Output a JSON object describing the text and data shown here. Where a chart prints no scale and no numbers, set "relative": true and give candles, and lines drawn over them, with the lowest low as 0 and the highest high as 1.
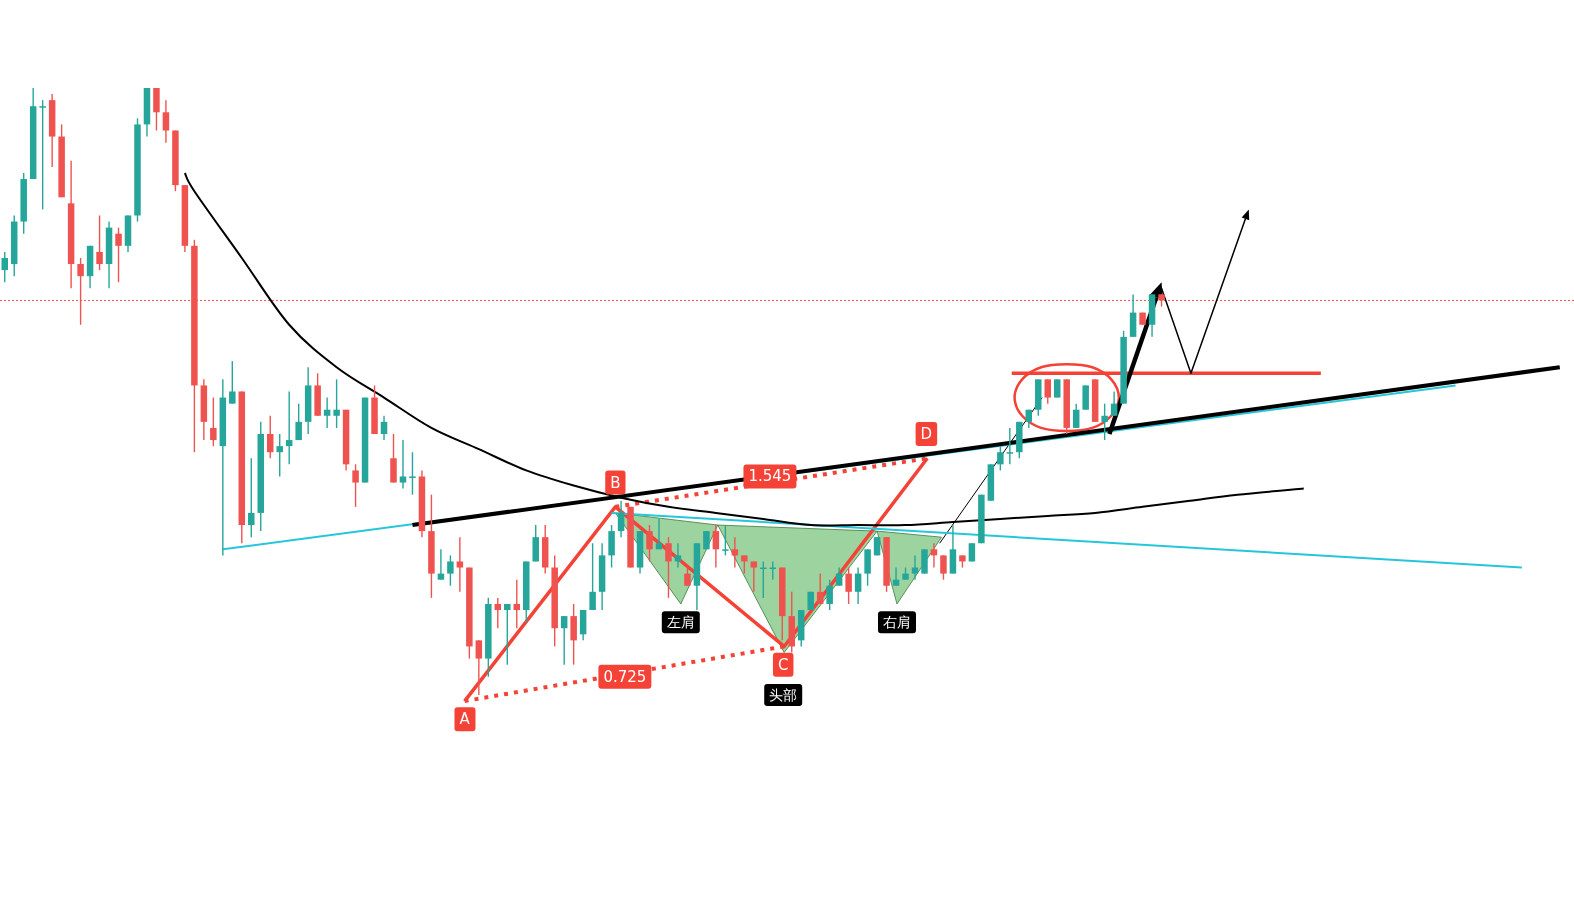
{
  "chart_data": {
    "type": "candlestick",
    "relative": true,
    "categories": [
      null,
      null,
      null,
      null,
      null,
      null,
      null,
      null,
      null,
      null,
      null,
      null,
      null,
      null,
      null,
      null,
      null,
      null,
      null,
      null,
      null,
      null,
      null,
      null,
      null,
      null,
      null,
      null,
      null,
      null,
      null,
      null,
      null,
      null,
      null,
      null,
      null,
      null,
      null,
      null,
      null,
      null,
      null,
      null,
      null,
      null,
      null,
      null,
      null,
      null,
      null,
      null,
      null,
      null,
      null,
      null,
      null,
      null,
      null,
      null,
      null,
      null,
      null,
      null,
      null,
      null,
      null,
      null,
      null,
      null,
      null,
      null,
      null,
      null,
      null,
      null,
      null,
      null,
      null,
      null,
      null,
      null,
      null,
      null,
      null,
      null,
      null,
      null,
      null,
      null,
      null,
      null,
      null,
      null,
      null,
      null,
      null,
      null,
      null,
      null,
      null,
      null,
      null,
      null,
      null,
      null,
      null,
      null,
      null,
      null,
      null,
      null,
      null,
      null,
      null,
      null,
      null,
      null,
      null,
      null,
      null,
      null,
      null,
      null,
      null,
      null,
      null,
      null,
      null,
      null,
      null,
      null,
      null,
      null,
      null,
      null,
      null,
      null,
      null,
      null,
      null,
      null,
      null,
      null,
      null,
      null,
      null,
      null,
      null,
      null,
      null,
      null,
      null,
      null,
      null,
      null,
      null,
      null,
      null,
      null,
      null,
      null,
      null,
      null,
      null
    ],
    "series": [
      {
        "type": "line",
        "color": "#26c6da",
        "values": [
          null,
          null,
          null,
          null,
          null,
          null,
          null,
          null,
          null,
          null,
          null,
          null,
          null,
          null,
          null,
          null,
          null,
          null,
          null,
          null,
          null,
          null,
          null,
          0.24,
          null,
          null,
          null,
          null,
          null,
          null,
          null,
          null,
          null,
          null,
          null,
          null,
          null,
          null,
          null,
          null,
          null,
          null,
          null,
          null,
          null,
          null,
          null,
          null,
          null,
          null,
          null,
          null,
          null,
          null,
          null,
          null,
          null,
          null,
          null,
          null,
          null,
          null,
          null,
          null,
          null,
          null,
          null,
          null,
          null,
          null,
          null,
          null,
          null,
          null,
          null,
          null,
          null,
          null,
          null,
          null,
          null,
          null,
          null,
          null,
          null,
          null,
          null,
          null,
          null,
          null,
          null,
          null,
          null,
          null,
          null,
          null,
          null,
          null,
          null,
          null,
          null,
          null,
          null,
          null,
          null,
          null,
          null,
          null,
          null,
          null,
          null,
          null,
          null,
          null,
          null,
          null,
          null,
          null,
          null,
          null,
          null,
          null,
          null,
          null,
          null,
          null,
          null,
          null,
          null,
          null,
          null,
          null,
          null,
          null,
          null,
          null,
          null,
          null,
          null,
          null,
          null,
          null,
          null,
          null,
          null,
          null,
          null,
          null,
          null,
          null,
          null,
          null,
          null,
          0.51,
          null,
          null,
          null,
          null,
          null,
          null,
          null,
          null,
          null,
          null,
          null
        ]
      },
      {
        "type": "line",
        "color": "#000000",
        "values": [
          null,
          null,
          null,
          null,
          null,
          null,
          null,
          null,
          null,
          null,
          null,
          null,
          null,
          null,
          null,
          null,
          null,
          null,
          null,
          null,
          null,
          null,
          null,
          null,
          null,
          null,
          null,
          null,
          null,
          null,
          null,
          null,
          null,
          null,
          null,
          null,
          null,
          null,
          null,
          null,
          null,
          null,
          null,
          0.28,
          null,
          null,
          null,
          null,
          null,
          null,
          null,
          null,
          null,
          null,
          null,
          null,
          null,
          null,
          null,
          null,
          null,
          null,
          null,
          null,
          null,
          null,
          null,
          null,
          null,
          null,
          null,
          null,
          null,
          null,
          null,
          null,
          null,
          null,
          null,
          null,
          null,
          null,
          null,
          null,
          null,
          null,
          null,
          null,
          null,
          null,
          null,
          null,
          null,
          null,
          null,
          null,
          null,
          null,
          null,
          null,
          null,
          null,
          null,
          null,
          null,
          null,
          null,
          null,
          null,
          null,
          null,
          null,
          null,
          null,
          null,
          null,
          null,
          null,
          null,
          null,
          null,
          null,
          null,
          null,
          null,
          null,
          null,
          null,
          null,
          null,
          null,
          null,
          null,
          null,
          null,
          null,
          null,
          null,
          null,
          null,
          null,
          null,
          null,
          null,
          null,
          null,
          null,
          null,
          null,
          null,
          null,
          null,
          null,
          null,
          null,
          null,
          null,
          null,
          null,
          null,
          null,
          null,
          null,
          null,
          0.54
        ]
      },
      {
        "type": "line",
        "color": "#26c6da",
        "values": [
          null,
          null,
          null,
          null,
          null,
          null,
          null,
          null,
          null,
          null,
          null,
          null,
          null,
          null,
          null,
          null,
          null,
          null,
          null,
          null,
          null,
          null,
          null,
          null,
          null,
          null,
          null,
          null,
          null,
          null,
          null,
          null,
          null,
          null,
          null,
          null,
          null,
          null,
          null,
          null,
          null,
          null,
          null,
          null,
          null,
          null,
          null,
          null,
          null,
          null,
          null,
          null,
          null,
          null,
          null,
          null,
          null,
          null,
          null,
          null,
          null,
          null,
          null,
          null,
          0.3,
          null,
          null,
          null,
          null,
          null,
          null,
          null,
          null,
          null,
          null,
          null,
          null,
          null,
          null,
          null,
          null,
          null,
          null,
          null,
          null,
          null,
          null,
          null,
          null,
          null,
          null,
          null,
          null,
          null,
          null,
          null,
          null,
          null,
          null,
          null,
          null,
          null,
          null,
          null,
          null,
          null,
          null,
          null,
          null,
          null,
          null,
          null,
          null,
          null,
          null,
          null,
          null,
          null,
          null,
          null,
          null,
          null,
          null,
          null,
          null,
          null,
          null,
          null,
          null,
          null,
          null,
          null,
          null,
          null,
          null,
          null,
          null,
          null,
          null,
          null,
          null,
          null,
          null,
          null,
          null,
          null,
          null,
          null,
          null,
          null,
          null,
          null,
          null,
          null,
          null,
          null,
          null,
          null,
          null,
          null,
          0.21,
          null,
          null,
          null,
          null
        ]
      },
      {
        "type": "line",
        "color": "#000000",
        "values": [
          null,
          null,
          null,
          null,
          null,
          null,
          null,
          null,
          null,
          null,
          null,
          null,
          null,
          null,
          null,
          null,
          null,
          null,
          null,
          0.86,
          0.83,
          null,
          null,
          null,
          null,
          0.72,
          null,
          null,
          null,
          null,
          0.61,
          null,
          null,
          null,
          null,
          0.54,
          null,
          null,
          null,
          null,
          0.49,
          null,
          null,
          null,
          null,
          0.44,
          null,
          null,
          null,
          null,
          0.405,
          null,
          null,
          null,
          null,
          0.37,
          null,
          null,
          null,
          null,
          0.345,
          null,
          null,
          null,
          null,
          0.325,
          null,
          null,
          null,
          null,
          0.31,
          null,
          null,
          null,
          null,
          0.3,
          null,
          null,
          null,
          null,
          0.29,
          null,
          null,
          null,
          null,
          0.28,
          null,
          null,
          null,
          null,
          0.28,
          null,
          null,
          null,
          null,
          0.28,
          null,
          null,
          null,
          null,
          0.285,
          null,
          null,
          null,
          null,
          0.29,
          null,
          null,
          null,
          null,
          0.295,
          null,
          null,
          null,
          null,
          0.3,
          null,
          null,
          null,
          null,
          0.31,
          null,
          null,
          null,
          null,
          0.32,
          null,
          null,
          null,
          null,
          0.33,
          null,
          null,
          null,
          null,
          null,
          null,
          0.34,
          null,
          null,
          null,
          null,
          null,
          null,
          null,
          null,
          null,
          null,
          null,
          null,
          null,
          null,
          null,
          null,
          null,
          null,
          null,
          null,
          null,
          null,
          null,
          null,
          null,
          null,
          null
        ]
      }
    ],
    "ohlc": [
      [
        0.7,
        0.73,
        0.68,
        0.72
      ],
      [
        0.71,
        0.79,
        0.69,
        0.78
      ],
      [
        0.78,
        0.86,
        0.76,
        0.85
      ],
      [
        0.85,
        1.0,
        0.85,
        0.97
      ],
      [
        0.97,
        0.98,
        0.8,
        0.97
      ],
      [
        0.98,
        0.99,
        0.87,
        0.92
      ],
      [
        0.92,
        0.94,
        0.82,
        0.82
      ],
      [
        0.81,
        0.88,
        0.67,
        0.71
      ],
      [
        0.71,
        0.72,
        0.61,
        0.69
      ],
      [
        0.69,
        0.74,
        0.67,
        0.74
      ],
      [
        0.73,
        0.79,
        0.7,
        0.71
      ],
      [
        0.71,
        0.78,
        0.67,
        0.77
      ],
      [
        0.76,
        0.77,
        0.68,
        0.74
      ],
      [
        0.74,
        0.79,
        0.73,
        0.79
      ],
      [
        0.79,
        0.95,
        0.78,
        0.94
      ],
      [
        0.94,
        1.0,
        0.92,
        1.0
      ],
      [
        1.0,
        1.0,
        0.93,
        0.96
      ],
      [
        0.96,
        0.98,
        0.91,
        0.93
      ],
      [
        0.93,
        0.93,
        0.83,
        0.84
      ],
      [
        0.84,
        0.84,
        0.73,
        0.74
      ],
      [
        0.74,
        0.75,
        0.4,
        0.51
      ],
      [
        0.51,
        0.52,
        0.42,
        0.45
      ],
      [
        0.44,
        0.49,
        0.41,
        0.42
      ],
      [
        0.41,
        0.52,
        0.23,
        0.49
      ],
      [
        0.48,
        0.55,
        0.48,
        0.5
      ],
      [
        0.5,
        0.5,
        0.25,
        0.28
      ],
      [
        0.28,
        0.39,
        0.26,
        0.3
      ],
      [
        0.3,
        0.45,
        0.27,
        0.43
      ],
      [
        0.43,
        0.46,
        0.39,
        0.4
      ],
      [
        0.4,
        0.43,
        0.36,
        0.41
      ],
      [
        0.41,
        0.5,
        0.38,
        0.42
      ],
      [
        0.42,
        0.48,
        0.42,
        0.45
      ],
      [
        0.45,
        0.54,
        0.43,
        0.51
      ],
      [
        0.51,
        0.53,
        0.46,
        0.46
      ],
      [
        0.46,
        0.49,
        0.44,
        0.47
      ],
      [
        0.46,
        0.52,
        0.44,
        0.47
      ],
      [
        0.47,
        0.47,
        0.37,
        0.38
      ],
      [
        0.37,
        0.38,
        0.31,
        0.35
      ],
      [
        0.35,
        0.49,
        0.35,
        0.49
      ],
      [
        0.49,
        0.51,
        0.43,
        0.43
      ],
      [
        0.43,
        0.46,
        0.42,
        0.45
      ],
      [
        0.39,
        0.43,
        0.35,
        0.35
      ],
      [
        0.35,
        0.42,
        0.34,
        0.36
      ],
      [
        0.36,
        0.4,
        0.33,
        0.36
      ],
      [
        0.36,
        0.37,
        0.26,
        0.27
      ],
      [
        0.27,
        0.33,
        0.16,
        0.2
      ],
      [
        0.19,
        0.24,
        0.19,
        0.2
      ],
      [
        0.2,
        0.23,
        0.18,
        0.22
      ],
      [
        0.22,
        0.26,
        0.17,
        0.21
      ],
      [
        0.21,
        0.21,
        0.06,
        0.08
      ],
      [
        0.09,
        0.09,
        0.0,
        0.06
      ],
      [
        0.06,
        0.16,
        0.03,
        0.15
      ],
      [
        0.15,
        0.16,
        0.11,
        0.14
      ],
      [
        0.14,
        0.15,
        0.05,
        0.15
      ],
      [
        0.15,
        0.19,
        0.11,
        0.14
      ],
      [
        0.14,
        0.22,
        0.12,
        0.22
      ],
      [
        0.22,
        0.28,
        0.22,
        0.26
      ],
      [
        0.26,
        0.28,
        0.2,
        0.21
      ],
      [
        0.21,
        0.23,
        0.08,
        0.11
      ],
      [
        0.11,
        0.13,
        0.05,
        0.13
      ],
      [
        0.13,
        0.15,
        0.05,
        0.09
      ],
      [
        0.1,
        0.14,
        0.09,
        0.14
      ],
      [
        0.14,
        0.25,
        0.14,
        0.17
      ],
      [
        0.17,
        0.25,
        0.14,
        0.23
      ],
      [
        0.23,
        0.28,
        0.21,
        0.27
      ],
      [
        0.27,
        0.32,
        0.26,
        0.3
      ],
      [
        0.31,
        0.31,
        0.21,
        0.21
      ],
      [
        0.21,
        0.27,
        0.2,
        0.27
      ],
      [
        0.27,
        0.28,
        0.22,
        0.24
      ],
      [
        0.24,
        0.29,
        0.24,
        0.25
      ],
      [
        0.25,
        0.26,
        0.16,
        0.22
      ],
      [
        0.22,
        0.25,
        0.21,
        0.23
      ],
      [
        0.2,
        0.21,
        0.18,
        0.18
      ],
      [
        0.18,
        0.25,
        0.14,
        0.25
      ],
      [
        0.24,
        0.27,
        0.24,
        0.27
      ],
      [
        0.27,
        0.28,
        0.21,
        0.24
      ],
      [
        0.24,
        0.28,
        0.23,
        0.24
      ],
      [
        0.24,
        0.26,
        0.21,
        0.23
      ],
      [
        0.23,
        0.23,
        0.2,
        0.22
      ],
      [
        0.22,
        0.22,
        0.17,
        0.21
      ],
      [
        0.21,
        0.22,
        0.16,
        0.21
      ],
      [
        0.21,
        0.22,
        0.19,
        0.21
      ],
      [
        0.21,
        0.21,
        0.09,
        0.13
      ],
      [
        0.13,
        0.17,
        0.07,
        0.08
      ],
      [
        0.09,
        0.14,
        0.08,
        0.14
      ],
      [
        0.14,
        0.17,
        0.14,
        0.17
      ],
      [
        0.17,
        0.2,
        0.15,
        0.15
      ],
      [
        0.15,
        0.19,
        0.14,
        0.18
      ],
      [
        0.18,
        0.21,
        0.18,
        0.2
      ],
      [
        0.2,
        0.21,
        0.15,
        0.17
      ],
      [
        0.17,
        0.21,
        0.15,
        0.2
      ],
      [
        0.2,
        0.24,
        0.18,
        0.24
      ],
      [
        0.23,
        0.26,
        0.23,
        0.26
      ],
      [
        0.26,
        0.26,
        0.17,
        0.18
      ],
      [
        0.18,
        0.21,
        0.18,
        0.19
      ],
      [
        0.19,
        0.21,
        0.19,
        0.2
      ],
      [
        0.2,
        0.23,
        0.19,
        0.21
      ],
      [
        0.2,
        0.24,
        0.2,
        0.24
      ],
      [
        0.24,
        0.25,
        0.21,
        0.23
      ],
      [
        0.23,
        0.23,
        0.19,
        0.2
      ],
      [
        0.2,
        0.28,
        0.2,
        0.24
      ],
      [
        0.23,
        0.23,
        0.21,
        0.22
      ],
      [
        0.22,
        0.25,
        0.22,
        0.25
      ],
      [
        0.25,
        0.33,
        0.25,
        0.33
      ],
      [
        0.32,
        0.38,
        0.32,
        0.38
      ],
      [
        0.38,
        0.41,
        0.37,
        0.4
      ],
      [
        0.4,
        0.44,
        0.38,
        0.4
      ],
      [
        0.4,
        0.45,
        0.39,
        0.45
      ],
      [
        0.45,
        0.47,
        0.44,
        0.47
      ],
      [
        0.47,
        0.52,
        0.46,
        0.52
      ],
      [
        0.52,
        0.52,
        0.48,
        0.49
      ],
      [
        0.49,
        0.52,
        0.49,
        0.52
      ],
      [
        0.52,
        0.52,
        0.43,
        0.44
      ],
      [
        0.44,
        0.48,
        0.44,
        0.47
      ],
      [
        0.47,
        0.51,
        0.47,
        0.51
      ],
      [
        0.52,
        0.52,
        0.45,
        0.45
      ],
      [
        0.45,
        0.48,
        0.42,
        0.46
      ],
      [
        0.46,
        0.5,
        0.46,
        0.48
      ],
      [
        0.48,
        0.6,
        0.48,
        0.59
      ],
      [
        0.59,
        0.66,
        0.59,
        0.63
      ],
      [
        0.63,
        0.63,
        0.61,
        0.61
      ],
      [
        0.61,
        0.66,
        0.59,
        0.66
      ],
      [
        0.66,
        0.66,
        0.64,
        0.65
      ],
      null,
      null,
      null,
      null,
      null,
      null,
      null,
      null,
      null,
      null,
      null,
      null,
      null,
      null,
      null,
      null,
      null,
      null,
      null,
      null,
      null,
      null,
      null,
      null,
      null,
      null,
      null,
      null,
      null,
      null,
      null,
      null,
      null,
      null,
      null,
      null,
      null,
      null,
      null,
      null,
      null,
      null
    ],
    "ref_lines": [
      {
        "axis": "y",
        "value": 0.65,
        "color": "#ef5350",
        "line_style": "dotted"
      }
    ],
    "annotations": [
      "左肩",
      "头部",
      "右肩",
      "A",
      "B",
      "C",
      "D",
      "0.725",
      "1.545"
    ]
  }
}
